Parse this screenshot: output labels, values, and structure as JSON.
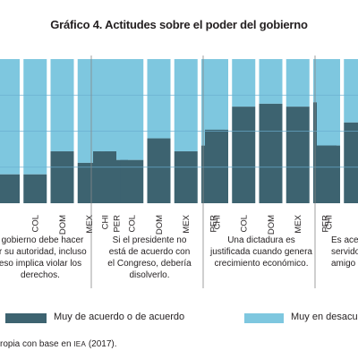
{
  "colors": {
    "agree": "#3d6370",
    "disagree": "#7ec7df",
    "divider": "#888888",
    "grid": "#6aaed0"
  },
  "chart_data": {
    "type": "bar",
    "stacked": true,
    "title": "Gráfico 4. Actitudes sobre el poder del gobierno",
    "ylim": [
      0,
      100
    ],
    "grid": true,
    "legend_position": "bottom",
    "series": [
      {
        "name": "Muy de acuerdo o de acuerdo"
      },
      {
        "name": "Muy en desacuerdo o en desacuerdo"
      }
    ],
    "panels": [
      {
        "caption": "l gobierno debe hacer\ner su autoridad, incluso\neso implica violar los\nderechos.",
        "categories": [
          "",
          "COL",
          "DOM",
          "MEX",
          "PER"
        ],
        "agree": [
          20,
          20,
          36,
          28,
          30
        ]
      },
      {
        "caption": "Si el presidente no\nestá de acuerdo con\nel Congreso, debería\ndisolverlo.",
        "categories": [
          "CHI",
          "COL",
          "DOM",
          "MEX",
          "PER"
        ],
        "agree": [
          36,
          30,
          45,
          36,
          40
        ]
      },
      {
        "caption": "Una dictadura es\njustificada cuando genera\ncrecimiento económico.",
        "categories": [
          "CHI",
          "COL",
          "DOM",
          "MEX",
          "PER"
        ],
        "agree": [
          51,
          67,
          69,
          67,
          70
        ]
      },
      {
        "caption": "Es acep\nservidor pu\namigo dán",
        "categories": [
          "CHI",
          ""
        ],
        "agree": [
          40,
          56
        ]
      }
    ]
  },
  "legend": {
    "agree_label": "Muy de acuerdo o de acuerdo",
    "disagree_label": "Muy en desacuerdo o en desacuerdo"
  },
  "source": {
    "prefix": "ropia con base en ",
    "org": "IEA",
    "suffix": " (2017)."
  }
}
